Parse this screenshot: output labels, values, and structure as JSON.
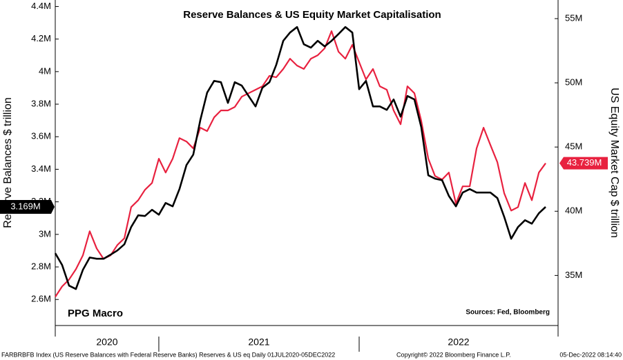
{
  "chart_data": {
    "type": "line",
    "title": "Reserve Balances & US Equity Market Capitalisation",
    "ylabel": "Reserve Balances $ trillion",
    "y2label": "US Equity Market Cap $ trillion",
    "annotations": [
      "PPG Macro",
      "Sources: Fed, Bloomberg"
    ],
    "footer": [
      "FARBRBFB Index (US Reserve Balances with Federal Reserve Banks) Reserves & US eq  Daily 01JUL2020-05DEC2022",
      "Copyright© 2022 Bloomberg Finance L.P.",
      "05-Dec-2022 08:14:40"
    ],
    "year_labels": [
      "2020",
      "2021",
      "2022"
    ],
    "xlim": [
      2020.483,
      2022.993
    ],
    "xticks": [
      2021,
      2022
    ],
    "x": [
      2020.483,
      2020.517,
      2020.552,
      2020.586,
      2020.621,
      2020.655,
      2020.69,
      2020.724,
      2020.759,
      2020.793,
      2020.828,
      2020.862,
      2020.897,
      2020.931,
      2020.966,
      2021.0,
      2021.034,
      2021.069,
      2021.103,
      2021.138,
      2021.172,
      2021.207,
      2021.241,
      2021.276,
      2021.31,
      2021.345,
      2021.379,
      2021.414,
      2021.448,
      2021.483,
      2021.517,
      2021.552,
      2021.586,
      2021.621,
      2021.655,
      2021.69,
      2021.724,
      2021.759,
      2021.793,
      2021.828,
      2021.862,
      2021.897,
      2021.931,
      2021.966,
      2022.0,
      2022.034,
      2022.069,
      2022.103,
      2022.138,
      2022.172,
      2022.207,
      2022.241,
      2022.276,
      2022.31,
      2022.345,
      2022.379,
      2022.414,
      2022.448,
      2022.483,
      2022.517,
      2022.552,
      2022.586,
      2022.621,
      2022.655,
      2022.69,
      2022.724,
      2022.759,
      2022.793,
      2022.828,
      2022.862,
      2022.897,
      2022.931
    ],
    "ylim": [
      2.44,
      4.44
    ],
    "yticks": [
      {
        "value": 2.6,
        "label": "2.6M"
      },
      {
        "value": 2.8,
        "label": "2.8M"
      },
      {
        "value": 3,
        "label": "3M"
      },
      {
        "value": 3.2,
        "label": "3.2M"
      },
      {
        "value": 3.4,
        "label": "3.4M"
      },
      {
        "value": 3.6,
        "label": "3.6M"
      },
      {
        "value": 3.8,
        "label": "3.8M"
      },
      {
        "value": 4,
        "label": "4M"
      },
      {
        "value": 4.2,
        "label": "4.2M"
      },
      {
        "value": 4.4,
        "label": "4.4M"
      }
    ],
    "y2lim": [
      31.1,
      56.45
    ],
    "y2ticks": [
      {
        "value": 35,
        "label": "35M"
      },
      {
        "value": 40,
        "label": "40M"
      },
      {
        "value": 45,
        "label": "45M"
      },
      {
        "value": 50,
        "label": "50M"
      },
      {
        "value": 55,
        "label": "55M"
      }
    ],
    "series": [
      {
        "name": "US Reserve Balances with Federal Reserve Banks",
        "color": "#000000",
        "axis": "y",
        "last_label": "3.169M",
        "values": [
          2.884,
          2.812,
          2.685,
          2.664,
          2.782,
          2.858,
          2.85,
          2.85,
          2.875,
          2.901,
          2.939,
          3.045,
          3.117,
          3.113,
          3.151,
          3.121,
          3.193,
          3.172,
          3.278,
          3.426,
          3.49,
          3.702,
          3.871,
          3.943,
          3.935,
          3.808,
          3.935,
          3.914,
          3.85,
          3.786,
          3.901,
          3.935,
          4.041,
          4.189,
          4.24,
          4.274,
          4.168,
          4.147,
          4.189,
          4.155,
          4.189,
          4.231,
          4.274,
          4.24,
          3.892,
          3.943,
          3.786,
          3.786,
          3.765,
          3.829,
          3.723,
          3.85,
          3.829,
          3.659,
          3.363,
          3.342,
          3.333,
          3.236,
          3.172,
          3.257,
          3.278,
          3.257,
          3.257,
          3.257,
          3.223,
          3.108,
          2.973,
          3.045,
          3.087,
          3.066,
          3.13,
          3.169
        ]
      },
      {
        "name": "US Equity Market Cap",
        "color": "#e8213f",
        "axis": "y2",
        "last_label": "43.739M",
        "values": [
          33.33,
          34.14,
          34.68,
          35.48,
          36.56,
          38.44,
          37.1,
          36.29,
          36.56,
          37.37,
          37.9,
          40.32,
          40.86,
          41.67,
          42.2,
          44.09,
          43.01,
          44.09,
          45.7,
          45.43,
          44.89,
          46.51,
          46.24,
          47.31,
          47.85,
          47.85,
          48.12,
          48.92,
          49.19,
          49.46,
          49.73,
          50.54,
          50.43,
          51.08,
          51.88,
          51.34,
          51.08,
          51.88,
          52.15,
          52.69,
          54.03,
          52.42,
          51.88,
          52.96,
          51.61,
          50.27,
          51.08,
          49.73,
          49.46,
          47.85,
          46.77,
          49.73,
          49.19,
          47.04,
          44.09,
          42.74,
          42.47,
          43.01,
          40.59,
          41.94,
          41.94,
          44.89,
          46.51,
          45.16,
          43.82,
          41.4,
          40.05,
          40.32,
          42.2,
          40.86,
          43.01,
          43.739
        ]
      }
    ]
  }
}
